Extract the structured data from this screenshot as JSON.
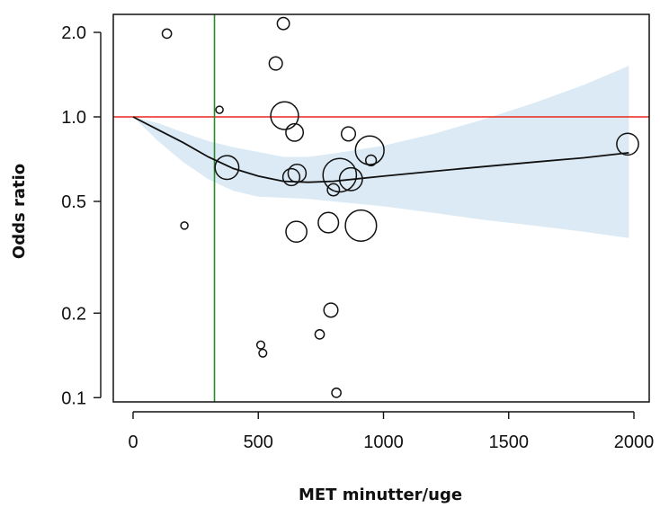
{
  "chart_data": {
    "type": "scatter",
    "title": "",
    "xlabel": "MET minutter/uge",
    "ylabel": "Odds ratio",
    "xlim": [
      -40,
      2040
    ],
    "ylim": [
      0.093,
      2.55
    ],
    "y_scale": "log",
    "x_ticks": [
      0,
      500,
      1000,
      1500,
      2000
    ],
    "x_tick_labels": [
      "0",
      "500",
      "1000",
      "1500",
      "2000"
    ],
    "y_ticks": [
      0.1,
      0.2,
      0.5,
      1.0,
      2.0
    ],
    "y_tick_labels": [
      "0.1",
      "0.2",
      "0.5",
      "1.0",
      "2.0"
    ],
    "grid": false,
    "legend": "none",
    "reference_lines": {
      "horizontal_y": 1.0,
      "horizontal_color": "#e8261d",
      "vertical_x": 325,
      "vertical_color": "#2a8a2a"
    },
    "colors": {
      "curve": "#111111",
      "points": "#111111",
      "confidence_band": "#dbeaf4"
    },
    "points": [
      {
        "x": 135,
        "y": 1.98,
        "weight": 1.0
      },
      {
        "x": 205,
        "y": 0.41,
        "weight": 0.6
      },
      {
        "x": 345,
        "y": 1.06,
        "weight": 0.6
      },
      {
        "x": 375,
        "y": 0.66,
        "weight": 4.0
      },
      {
        "x": 510,
        "y": 0.154,
        "weight": 0.7
      },
      {
        "x": 518,
        "y": 0.144,
        "weight": 0.7
      },
      {
        "x": 570,
        "y": 1.55,
        "weight": 1.8
      },
      {
        "x": 600,
        "y": 2.15,
        "weight": 1.6
      },
      {
        "x": 605,
        "y": 1.01,
        "weight": 4.8
      },
      {
        "x": 632,
        "y": 0.61,
        "weight": 2.6
      },
      {
        "x": 645,
        "y": 0.88,
        "weight": 2.7
      },
      {
        "x": 652,
        "y": 0.39,
        "weight": 3.4
      },
      {
        "x": 655,
        "y": 0.63,
        "weight": 2.8
      },
      {
        "x": 745,
        "y": 0.168,
        "weight": 1.0
      },
      {
        "x": 780,
        "y": 0.42,
        "weight": 3.3
      },
      {
        "x": 790,
        "y": 0.205,
        "weight": 2.0
      },
      {
        "x": 800,
        "y": 0.55,
        "weight": 1.6
      },
      {
        "x": 812,
        "y": 0.104,
        "weight": 1.0
      },
      {
        "x": 825,
        "y": 0.62,
        "weight": 6.0
      },
      {
        "x": 860,
        "y": 0.87,
        "weight": 2.0
      },
      {
        "x": 870,
        "y": 0.6,
        "weight": 3.8
      },
      {
        "x": 910,
        "y": 0.41,
        "weight": 5.5
      },
      {
        "x": 945,
        "y": 0.76,
        "weight": 5.0
      },
      {
        "x": 950,
        "y": 0.7,
        "weight": 1.3
      },
      {
        "x": 1975,
        "y": 0.8,
        "weight": 3.6
      }
    ],
    "curve": {
      "x": [
        0,
        100,
        200,
        300,
        400,
        500,
        600,
        700,
        800,
        1000,
        1200,
        1400,
        1600,
        1800,
        1980
      ],
      "y": [
        1.0,
        0.9,
        0.81,
        0.72,
        0.655,
        0.615,
        0.59,
        0.585,
        0.59,
        0.615,
        0.64,
        0.665,
        0.69,
        0.715,
        0.745
      ]
    },
    "confidence_band": {
      "x": [
        0,
        100,
        200,
        300,
        400,
        500,
        600,
        700,
        800,
        1000,
        1200,
        1400,
        1600,
        1800,
        1980
      ],
      "lower": [
        1.0,
        0.82,
        0.69,
        0.6,
        0.545,
        0.52,
        0.515,
        0.51,
        0.5,
        0.48,
        0.455,
        0.43,
        0.41,
        0.39,
        0.37
      ],
      "upper": [
        1.0,
        0.95,
        0.88,
        0.82,
        0.78,
        0.75,
        0.72,
        0.72,
        0.74,
        0.79,
        0.87,
        0.98,
        1.12,
        1.3,
        1.52
      ]
    }
  }
}
